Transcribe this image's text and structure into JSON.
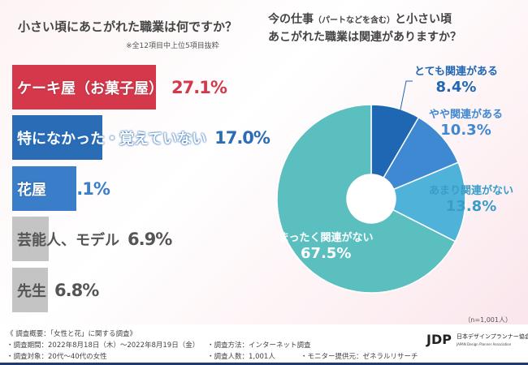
{
  "left_chart": {
    "title": "小さい頃にあこがれた職業は何ですか？",
    "note": "※全12項目中上位5項目抜粋"
  },
  "chart_data": [
    {
      "type": "bar",
      "orientation": "horizontal",
      "categories": [
        "ケーキ屋（お菓子屋）",
        "特になかった・覚えていない",
        "花屋",
        "芸能人、モデル",
        "先生"
      ],
      "values": [
        27.1,
        17.0,
        12.1,
        6.9,
        6.8
      ],
      "labels": [
        "27.1%",
        "17.0%",
        "12.1%",
        "6.9%",
        "6.8%"
      ],
      "colors": [
        "#d6384b",
        "#2a6cb6",
        "#3a7ec9",
        "#c4c4c4",
        "#c4c4c4"
      ],
      "label_colors": [
        "#d6384b",
        "#2a6cb6",
        "#3a7ec9",
        "#555555",
        "#555555"
      ]
    },
    {
      "type": "pie",
      "style": "donut",
      "title_line1": "今の仕事",
      "title_small": "（パートなどを含む）",
      "title_line1b": "と小さい頃",
      "title_line2": "あこがれた職業は関連がありますか？",
      "categories": [
        "とても関連がある",
        "やや関連がある",
        "あまり関連がない",
        "まったく関連がない"
      ],
      "values": [
        8.4,
        10.3,
        13.8,
        67.5
      ],
      "labels": [
        "8.4%",
        "10.3%",
        "13.8%",
        "67.5%"
      ],
      "colors": [
        "#1f66b3",
        "#3f88d2",
        "#4fb3d9",
        "#5cbfbf"
      ],
      "n": "（n=1,001人）"
    }
  ],
  "footer": {
    "l1": "《 調査概要：「女性と花」に関する調査》",
    "l2": "・調査期間：2022年8月18日（木）～2022年8月19日（金）",
    "l3": "・調査対象：20代～40代の女性",
    "m1": "・調査方法：インターネット調査",
    "m2": "・調査人数：1,001人",
    "r": "・モニター提供元：ゼネラルリサーチ",
    "logo": "JDP",
    "logo_jp": "日本デザインプランナー協会",
    "logo_en": "JAPAN Design Planner Association"
  }
}
